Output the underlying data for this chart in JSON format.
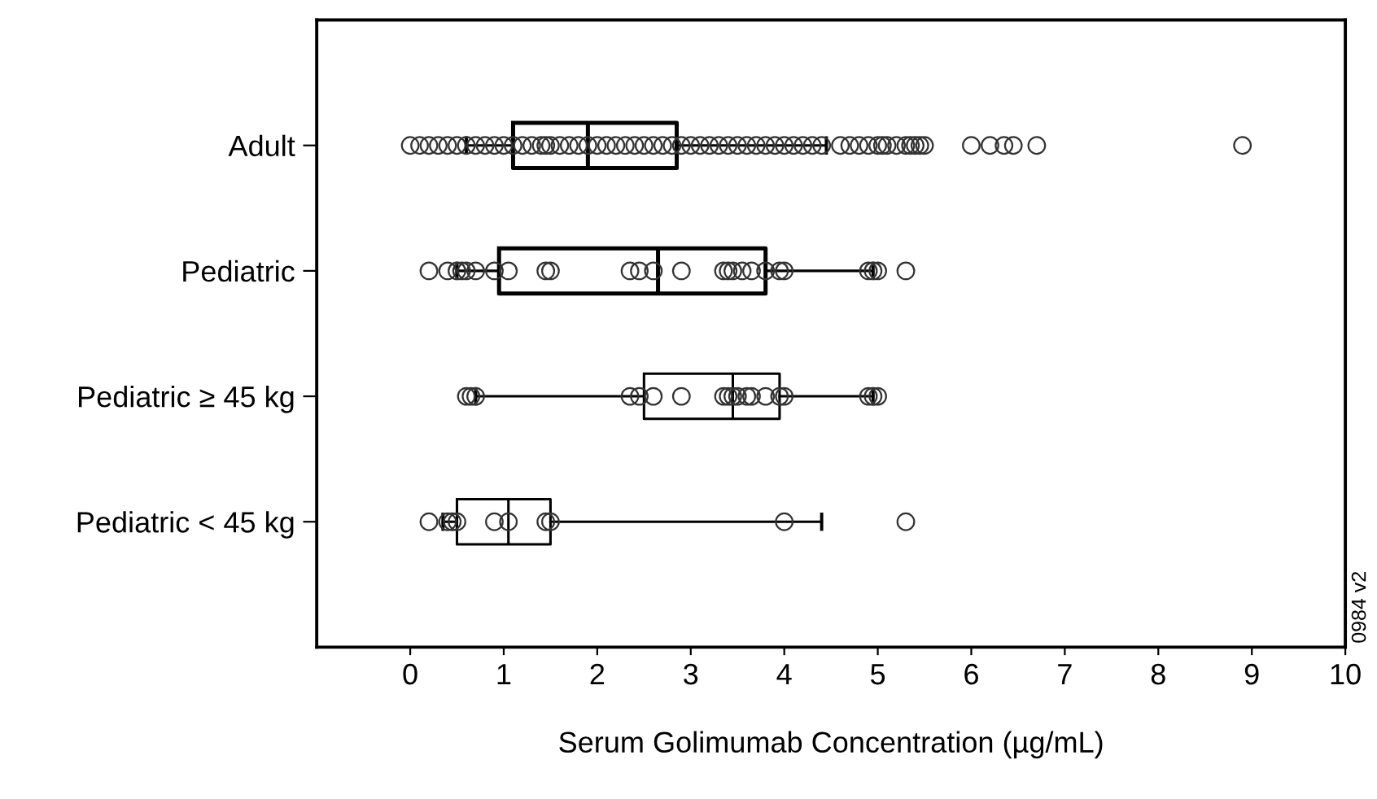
{
  "chart_data": {
    "type": "box",
    "orientation": "horizontal",
    "xlabel": "Serum Golimumab Concentration (µg/mL)",
    "categories": [
      "Adult",
      "Pediatric",
      "Pediatric ≥ 45 kg",
      "Pediatric < 45 kg"
    ],
    "xlim": [
      -1,
      10
    ],
    "xticks": [
      0,
      1,
      2,
      3,
      4,
      5,
      6,
      7,
      8,
      9,
      10
    ],
    "grid": false,
    "marker": "circle",
    "annotations": [
      "0984 v2"
    ],
    "boxes": [
      {
        "low": 0.6,
        "q1": 1.1,
        "median": 1.9,
        "q3": 2.85,
        "high": 4.45
      },
      {
        "low": 0.5,
        "q1": 0.95,
        "median": 2.65,
        "q3": 3.8,
        "high": 4.95
      },
      {
        "low": 0.7,
        "q1": 2.5,
        "median": 3.45,
        "q3": 3.95,
        "high": 4.95
      },
      {
        "low": 0.35,
        "q1": 0.5,
        "median": 1.05,
        "q3": 1.5,
        "high": 4.4
      }
    ],
    "series": [
      {
        "type": "scatter",
        "color": "#333333",
        "x": [
          "Adult",
          "Adult",
          "Adult",
          "Adult",
          "Adult",
          "Adult",
          "Adult",
          "Adult",
          "Adult",
          "Adult",
          "Adult",
          "Adult",
          "Adult",
          "Adult",
          "Adult",
          "Adult",
          "Adult",
          "Adult",
          "Adult",
          "Adult",
          "Adult",
          "Adult",
          "Adult",
          "Adult",
          "Adult",
          "Adult",
          "Adult",
          "Adult",
          "Adult",
          "Adult",
          "Adult",
          "Adult",
          "Adult",
          "Adult",
          "Adult",
          "Adult",
          "Adult",
          "Adult",
          "Adult",
          "Adult",
          "Adult",
          "Adult",
          "Adult",
          "Adult",
          "Adult",
          "Adult",
          "Adult",
          "Adult",
          "Adult",
          "Adult",
          "Adult",
          "Adult",
          "Adult",
          "Adult",
          "Adult",
          "Adult",
          "Adult",
          "Adult",
          "Adult",
          "Adult",
          "Adult",
          "Adult",
          "Adult",
          "Adult",
          "Adult"
        ],
        "values": [
          0.0,
          0.1,
          0.2,
          0.3,
          0.4,
          0.5,
          0.6,
          0.7,
          0.8,
          0.9,
          1.0,
          1.1,
          1.2,
          1.3,
          1.4,
          1.5,
          1.6,
          1.7,
          1.8,
          1.9,
          2.0,
          2.1,
          2.2,
          2.3,
          2.4,
          2.5,
          2.6,
          2.7,
          2.8,
          2.9,
          3.0,
          3.1,
          3.2,
          3.3,
          3.4,
          3.5,
          3.6,
          3.7,
          3.8,
          3.9,
          4.0,
          4.1,
          4.2,
          4.3,
          4.4,
          4.6,
          4.7,
          4.8,
          4.9,
          5.0,
          5.05,
          5.1,
          5.2,
          5.3,
          5.35,
          5.4,
          5.45,
          5.5,
          6.0,
          6.2,
          6.35,
          6.45,
          6.7,
          8.9,
          1.45
        ]
      },
      {
        "type": "scatter",
        "color": "#333333",
        "x": [
          "Pediatric",
          "Pediatric",
          "Pediatric",
          "Pediatric",
          "Pediatric",
          "Pediatric",
          "Pediatric",
          "Pediatric",
          "Pediatric",
          "Pediatric",
          "Pediatric",
          "Pediatric",
          "Pediatric",
          "Pediatric",
          "Pediatric",
          "Pediatric",
          "Pediatric",
          "Pediatric",
          "Pediatric",
          "Pediatric",
          "Pediatric",
          "Pediatric",
          "Pediatric",
          "Pediatric",
          "Pediatric",
          "Pediatric"
        ],
        "values": [
          0.2,
          0.4,
          0.5,
          0.55,
          0.6,
          0.7,
          0.9,
          1.05,
          1.45,
          1.5,
          2.35,
          2.45,
          2.6,
          2.9,
          3.35,
          3.4,
          3.45,
          3.55,
          3.65,
          3.8,
          3.95,
          4.0,
          4.9,
          4.95,
          5.0,
          5.3
        ]
      },
      {
        "type": "scatter",
        "color": "#333333",
        "x": [
          "Pediatric ≥ 45 kg",
          "Pediatric ≥ 45 kg",
          "Pediatric ≥ 45 kg",
          "Pediatric ≥ 45 kg",
          "Pediatric ≥ 45 kg",
          "Pediatric ≥ 45 kg",
          "Pediatric ≥ 45 kg",
          "Pediatric ≥ 45 kg",
          "Pediatric ≥ 45 kg",
          "Pediatric ≥ 45 kg",
          "Pediatric ≥ 45 kg",
          "Pediatric ≥ 45 kg",
          "Pediatric ≥ 45 kg",
          "Pediatric ≥ 45 kg",
          "Pediatric ≥ 45 kg",
          "Pediatric ≥ 45 kg",
          "Pediatric ≥ 45 kg",
          "Pediatric ≥ 45 kg",
          "Pediatric ≥ 45 kg"
        ],
        "values": [
          0.6,
          0.65,
          0.7,
          2.35,
          2.45,
          2.6,
          2.9,
          3.35,
          3.4,
          3.45,
          3.5,
          3.6,
          3.65,
          3.8,
          3.95,
          4.0,
          4.9,
          4.95,
          5.0
        ]
      },
      {
        "type": "scatter",
        "color": "#333333",
        "x": [
          "Pediatric < 45 kg",
          "Pediatric < 45 kg",
          "Pediatric < 45 kg",
          "Pediatric < 45 kg",
          "Pediatric < 45 kg",
          "Pediatric < 45 kg",
          "Pediatric < 45 kg",
          "Pediatric < 45 kg",
          "Pediatric < 45 kg",
          "Pediatric < 45 kg"
        ],
        "values": [
          0.2,
          0.4,
          0.45,
          0.5,
          0.9,
          1.05,
          1.45,
          1.5,
          4.0,
          5.3
        ]
      }
    ]
  }
}
